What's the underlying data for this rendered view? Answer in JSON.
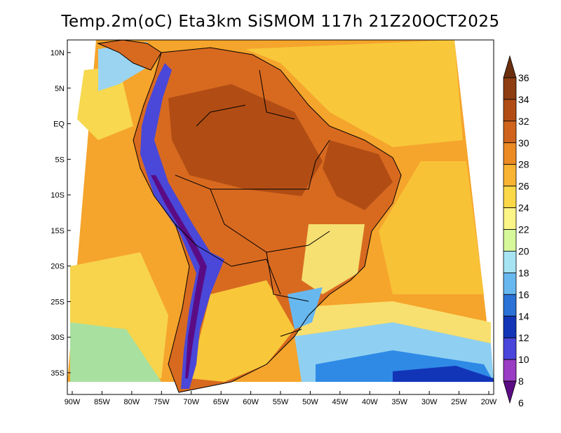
{
  "title": "Temp.2m(oC) Eta3km SiSMOM 117h 21Z20OCT2025",
  "lat_labels": [
    "10N",
    "5N",
    "EQ",
    "5S",
    "10S",
    "15S",
    "20S",
    "25S",
    "30S",
    "35S"
  ],
  "lat_values": [
    10,
    5,
    0,
    -5,
    -10,
    -15,
    -20,
    -25,
    -30,
    -35
  ],
  "lon_labels": [
    "90W",
    "85W",
    "80W",
    "75W",
    "70W",
    "65W",
    "60W",
    "55W",
    "50W",
    "45W",
    "40W",
    "35W",
    "30W",
    "25W",
    "20W"
  ],
  "lon_values": [
    -90,
    -85,
    -80,
    -75,
    -70,
    -65,
    -60,
    -55,
    -50,
    -45,
    -40,
    -35,
    -30,
    -25,
    -20
  ],
  "colorbar": {
    "labels": [
      "36",
      "34",
      "32",
      "30",
      "28",
      "26",
      "24",
      "22",
      "20",
      "18",
      "16",
      "14",
      "12",
      "10",
      "8",
      "6"
    ],
    "colors": [
      "#6b2f0f",
      "#8e3d12",
      "#b14d14",
      "#d0641c",
      "#ec8a24",
      "#f8b432",
      "#fbd848",
      "#fbf487",
      "#d6f79a",
      "#a6e4f4",
      "#68b8f0",
      "#2a72d6",
      "#1235b8",
      "#4a46dc",
      "#9a3cc4",
      "#5b0c85"
    ]
  },
  "layers": {
    "land_fill": "#d86a20",
    "ocean_fill": "#f5a42c",
    "andes_fill": "#4a48d8",
    "south_ocean_fill": "#8fd0f2",
    "cold_water_fill": "#2f8ae6",
    "pacific_fill": "#f2c040"
  }
}
